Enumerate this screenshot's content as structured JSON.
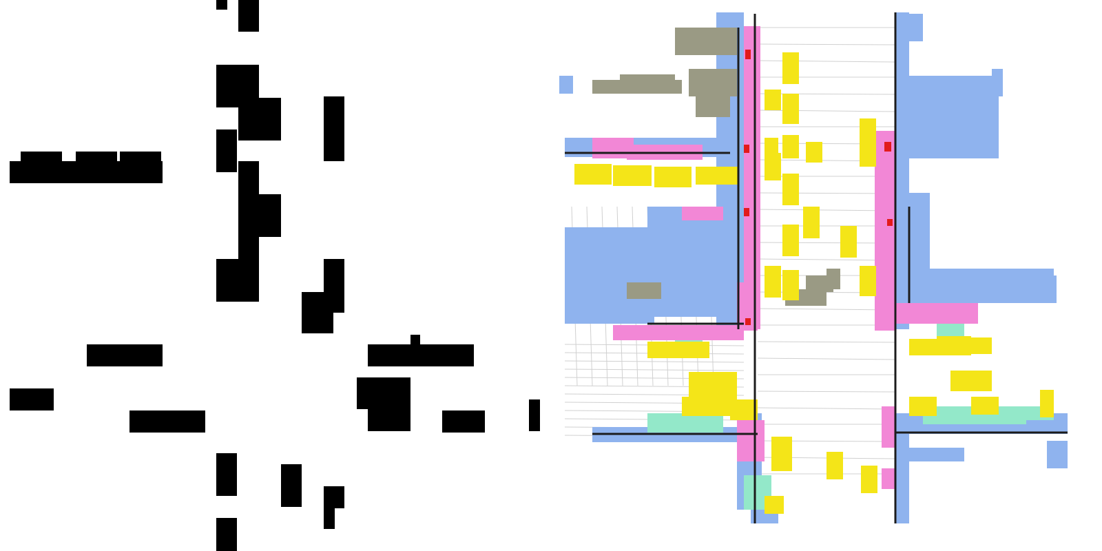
{
  "panels": [
    {
      "name": "occupancy-grid-binary-map"
    },
    {
      "name": "semantic-voxel-3d-reconstruction"
    }
  ],
  "colors": {
    "background": "#ffffff",
    "occupied_cell": "#000000",
    "building": "#8fb3ee",
    "sidewalk": "#f287d6",
    "vehicle": "#f4e518",
    "vegetation": "#9a9a84",
    "terrain": "#93e8c9",
    "traffic_sign": "#e21b1b",
    "road_lines": "#d0d0d0",
    "voxel_edge": "#1c1c1c"
  }
}
